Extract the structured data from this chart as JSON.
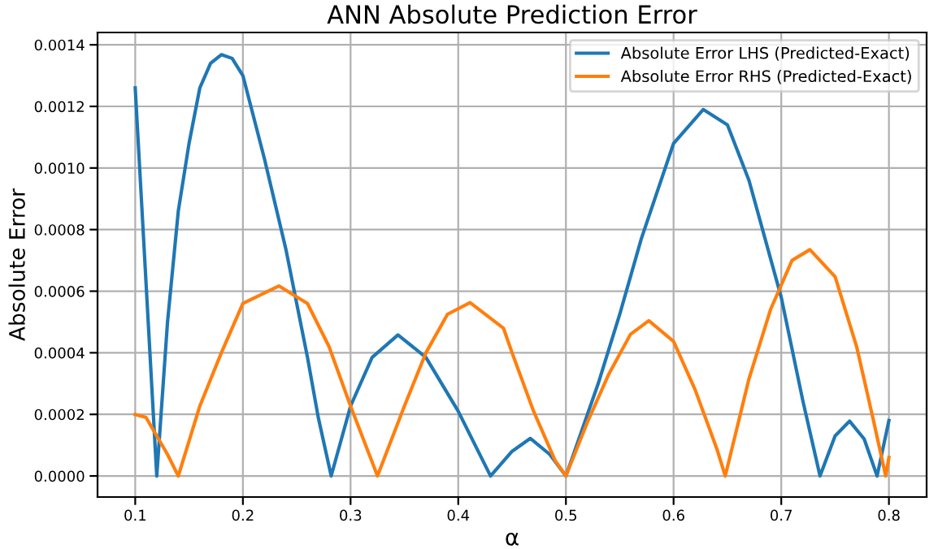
{
  "chart_data": {
    "type": "line",
    "title": "ANN Absolute Prediction Error",
    "xlabel": "α",
    "ylabel": "Absolute Error",
    "xlim": [
      0.065,
      0.835
    ],
    "xticks": [
      0.1,
      0.2,
      0.3,
      0.4,
      0.5,
      0.6,
      0.7,
      0.8
    ],
    "ylim": [
      -6.84e-05,
      0.00144
    ],
    "yticks": [
      {
        "value": 0,
        "label": "0.0000"
      },
      {
        "value": 0.0002,
        "label": "0.0002"
      },
      {
        "value": 0.0004,
        "label": "0.0004"
      },
      {
        "value": 0.0006,
        "label": "0.0006"
      },
      {
        "value": 0.0008,
        "label": "0.0008"
      },
      {
        "value": 0.001,
        "label": "0.0010"
      },
      {
        "value": 0.0012,
        "label": "0.0012"
      },
      {
        "value": 0.0014,
        "label": "0.0014"
      }
    ],
    "grid": true,
    "legend": "top right",
    "line_style": "solid",
    "marker": "none",
    "series": [
      {
        "name": "Absolute Error LHS (Predicted-Exact)",
        "color": "#1f77b4",
        "x": [
          0.1,
          0.12,
          0.13,
          0.14,
          0.15,
          0.16,
          0.17,
          0.18,
          0.19,
          0.2,
          0.22,
          0.24,
          0.26,
          0.27,
          0.282,
          0.3,
          0.32,
          0.344,
          0.37,
          0.4,
          0.43,
          0.45,
          0.467,
          0.485,
          0.5,
          0.53,
          0.55,
          0.57,
          0.6,
          0.6275,
          0.65,
          0.67,
          0.7,
          0.72,
          0.736,
          0.75,
          0.7635,
          0.777,
          0.789,
          0.8
        ],
        "values": [
          0.00126,
          0,
          0.0005,
          0.00086,
          0.00108,
          0.00126,
          0.00134,
          0.001368,
          0.001356,
          0.0013,
          0.00103,
          0.000735,
          0.000385,
          0.00019,
          0,
          0.000227,
          0.000385,
          0.000458,
          0.000385,
          0.00021,
          0,
          8e-05,
          0.000122,
          7e-05,
          0,
          0.0003,
          0.000525,
          0.00077,
          0.00108,
          0.00119,
          0.00114,
          0.00096,
          0.00058,
          0.000245,
          0,
          0.00013,
          0.000178,
          0.00012,
          0,
          0.00018
        ]
      },
      {
        "name": "Absolute Error RHS (Predicted-Exact)",
        "color": "#ff7f0e",
        "x": [
          0.1,
          0.11,
          0.12,
          0.13,
          0.14,
          0.16,
          0.18,
          0.2,
          0.2334,
          0.26,
          0.28,
          0.3,
          0.325,
          0.35,
          0.37,
          0.39,
          0.411,
          0.442,
          0.45,
          0.47,
          0.49,
          0.5,
          0.52,
          0.54,
          0.56,
          0.577,
          0.6,
          0.62,
          0.64,
          0.648,
          0.67,
          0.69,
          0.71,
          0.7266,
          0.75,
          0.77,
          0.785,
          0.797,
          0.8
        ],
        "values": [
          0.0002,
          0.00019,
          0.00013,
          7e-05,
          0,
          0.000227,
          0.0004,
          0.00056,
          0.000617,
          0.00056,
          0.00042,
          0.000227,
          0,
          0.000227,
          0.0004,
          0.000525,
          0.000563,
          0.00048,
          0.0004,
          0.00021,
          5e-05,
          0,
          0.000175,
          0.000332,
          0.00046,
          0.000504,
          0.000437,
          0.00028,
          9e-05,
          0,
          0.000315,
          0.00054,
          0.0007,
          0.000735,
          0.000647,
          0.00042,
          0.00019,
          0,
          6e-05
        ]
      }
    ]
  }
}
